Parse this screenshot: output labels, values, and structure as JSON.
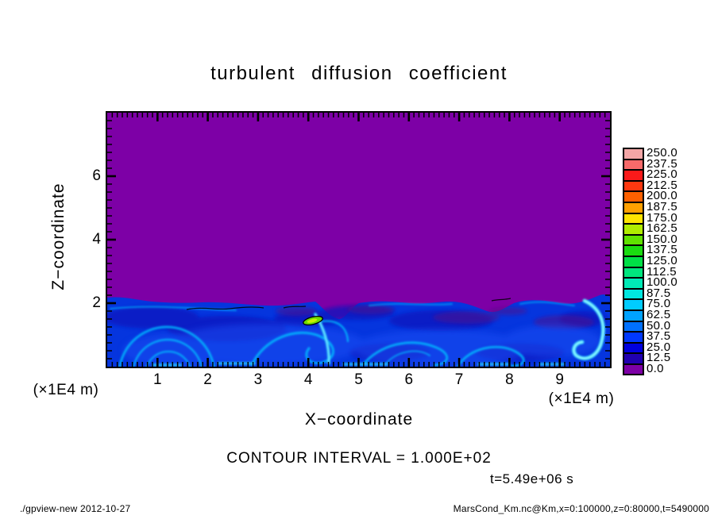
{
  "title": "turbulent diffusion coefficient",
  "axes": {
    "x": {
      "label": "X−coordinate",
      "unit": "(×1E4 m)",
      "ticks": [
        "1",
        "2",
        "3",
        "4",
        "5",
        "6",
        "7",
        "8",
        "9"
      ],
      "range_x1e4_m": [
        0,
        10
      ]
    },
    "y": {
      "label": "Z−coordinate",
      "unit": "(×1E4 m)",
      "ticks": [
        "2",
        "4",
        "6"
      ],
      "range_x1e4_m": [
        0,
        8
      ]
    }
  },
  "annotations": {
    "contour_interval": "CONTOUR INTERVAL = 1.000E+02",
    "time": "t=5.49e+06 s"
  },
  "footer": {
    "left": "./gpview-new  2012-10-27",
    "right": "MarsCond_Km.nc@Km,x=0:100000,z=0:80000,t=5490000"
  },
  "colorbar": {
    "labels_top_to_bottom": [
      "250.0",
      "237.5",
      "225.0",
      "212.5",
      "200.0",
      "187.5",
      "175.0",
      "162.5",
      "150.0",
      "137.5",
      "125.0",
      "112.5",
      "100.0",
      "87.5",
      "75.0",
      "62.5",
      "50.0",
      "37.5",
      "25.0",
      "12.5",
      "0.0"
    ],
    "colors_top_to_bottom": [
      "#F4A6A6",
      "#F86A6A",
      "#FB1A1A",
      "#FF3810",
      "#FF6000",
      "#FFA000",
      "#FFE400",
      "#B0EC00",
      "#60E200",
      "#1ADC10",
      "#00E046",
      "#00E67E",
      "#00EAB6",
      "#00E6E0",
      "#00CCFF",
      "#00A2FF",
      "#0070FF",
      "#0038FF",
      "#0000DE",
      "#2000B0",
      "#7D00A6"
    ]
  },
  "chart_data": {
    "type": "heatmap",
    "title": "turbulent diffusion coefficient",
    "xlabel": "X−coordinate",
    "ylabel": "Z−coordinate",
    "x_unit": "×1E4 m",
    "y_unit": "×1E4 m",
    "xlim": [
      0,
      10
    ],
    "ylim": [
      0,
      8
    ],
    "x_major_ticks": [
      1,
      2,
      3,
      4,
      5,
      6,
      7,
      8,
      9
    ],
    "y_major_ticks": [
      2,
      4,
      6
    ],
    "levels": [
      0,
      12.5,
      25,
      37.5,
      50,
      62.5,
      75,
      87.5,
      100,
      112.5,
      125,
      137.5,
      150,
      162.5,
      175,
      187.5,
      200,
      212.5,
      225,
      237.5,
      250
    ],
    "contour_interval": 100,
    "time_label": "t=5.49e+06 s",
    "legend_position": "right",
    "grid": false,
    "field_summary": [
      {
        "region": "z > ~2.1 (free atmosphere)",
        "value": "~0 (lowest bin, purple)"
      },
      {
        "region": "0 < z < ~2.1 (boundary layer)",
        "value": "mostly 25–100, swirling turbulent eddies (blue/cyan)"
      },
      {
        "region": "x ≈ 4, z ≈ 1.9",
        "value": "local maximum ~150–175 (small green patch outlined by the 100 contour)"
      },
      {
        "region": "x ≈ 9.6, z ≈ 0.5–1.8",
        "value": "bright cyan hook-shaped eddy ~75–100"
      }
    ]
  }
}
